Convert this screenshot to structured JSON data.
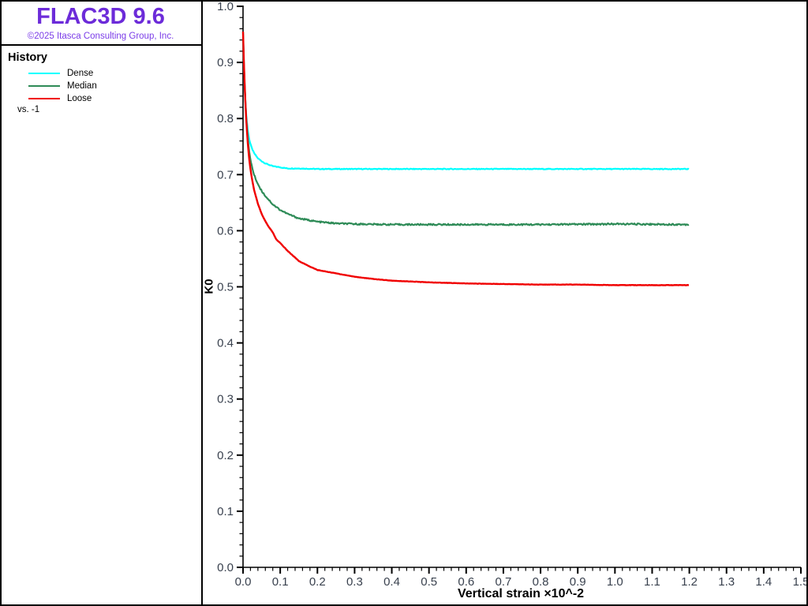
{
  "window": {
    "background": "#ffffff",
    "frame_color": "#000000"
  },
  "sidebar": {
    "title": "FLAC3D 9.6",
    "title_color": "#6c2bd9",
    "subtitle": "©2025 Itasca Consulting Group, Inc.",
    "subtitle_color": "#7b3ce8",
    "legend": {
      "heading": "History",
      "items": [
        {
          "label": "Dense",
          "color": "#00ffff"
        },
        {
          "label": "Median",
          "color": "#2e8b57"
        },
        {
          "label": "Loose",
          "color": "#f00000"
        }
      ],
      "footnote": "vs. -1"
    }
  },
  "chart_data": {
    "type": "line",
    "title": "",
    "xlabel": "Vertical strain ×10^-2",
    "ylabel": "K0",
    "xlim": [
      0,
      1.5
    ],
    "ylim": [
      0,
      1.0
    ],
    "x_major_tick": 0.1,
    "x_minor_tick": 0.02,
    "y_major_tick": 0.1,
    "y_minor_tick": 0.02,
    "x_tick_labels": [
      "0.0",
      "0.1",
      "0.2",
      "0.3",
      "0.4",
      "0.5",
      "0.6",
      "0.7",
      "0.8",
      "0.9",
      "1.0",
      "1.1",
      "1.2",
      "1.3",
      "1.4",
      "1.5"
    ],
    "y_tick_labels": [
      "0.0",
      "0.1",
      "0.2",
      "0.3",
      "0.4",
      "0.5",
      "0.6",
      "0.7",
      "0.8",
      "0.9",
      "1.0"
    ],
    "grid": false,
    "legend_position": "sidebar",
    "tick_label_color": "#39414e",
    "axis_color": "#000000",
    "series": [
      {
        "name": "Dense",
        "color": "#00ffff",
        "stroke_width": 2.2,
        "noise": 0.0007,
        "x": [
          0,
          0.002,
          0.005,
          0.008,
          0.012,
          0.016,
          0.02,
          0.025,
          0.03,
          0.04,
          0.05,
          0.06,
          0.08,
          0.1,
          0.12,
          0.15,
          0.2,
          0.25,
          0.3,
          0.4,
          0.5,
          0.6,
          0.8,
          1.0,
          1.2
        ],
        "y": [
          0.955,
          0.902,
          0.847,
          0.812,
          0.782,
          0.765,
          0.754,
          0.745,
          0.738,
          0.729,
          0.724,
          0.72,
          0.715,
          0.713,
          0.711,
          0.711,
          0.71,
          0.71,
          0.71,
          0.71,
          0.71,
          0.71,
          0.71,
          0.71,
          0.71
        ]
      },
      {
        "name": "Median",
        "color": "#2e8b57",
        "stroke_width": 2.2,
        "noise": 0.0013,
        "x": [
          0,
          0.002,
          0.005,
          0.008,
          0.012,
          0.016,
          0.02,
          0.025,
          0.03,
          0.04,
          0.05,
          0.06,
          0.08,
          0.1,
          0.12,
          0.15,
          0.2,
          0.25,
          0.3,
          0.4,
          0.5,
          0.6,
          0.8,
          1.0,
          1.2
        ],
        "y": [
          0.955,
          0.905,
          0.848,
          0.807,
          0.77,
          0.744,
          0.727,
          0.711,
          0.699,
          0.683,
          0.671,
          0.662,
          0.647,
          0.637,
          0.63,
          0.622,
          0.616,
          0.613,
          0.612,
          0.611,
          0.611,
          0.611,
          0.611,
          0.612,
          0.611
        ]
      },
      {
        "name": "Loose",
        "color": "#f00000",
        "stroke_width": 2.4,
        "noise": 0.0003,
        "x": [
          0,
          0.002,
          0.005,
          0.008,
          0.012,
          0.016,
          0.02,
          0.025,
          0.03,
          0.04,
          0.05,
          0.06,
          0.07,
          0.08,
          0.09,
          0.1,
          0.12,
          0.15,
          0.18,
          0.2,
          0.25,
          0.3,
          0.35,
          0.4,
          0.5,
          0.6,
          0.7,
          0.8,
          0.9,
          1.0,
          1.1,
          1.2
        ],
        "y": [
          0.955,
          0.907,
          0.849,
          0.805,
          0.762,
          0.731,
          0.709,
          0.689,
          0.672,
          0.648,
          0.63,
          0.617,
          0.606,
          0.597,
          0.584,
          0.578,
          0.564,
          0.546,
          0.536,
          0.53,
          0.524,
          0.518,
          0.514,
          0.511,
          0.508,
          0.506,
          0.505,
          0.504,
          0.504,
          0.503,
          0.503,
          0.503
        ]
      }
    ]
  }
}
